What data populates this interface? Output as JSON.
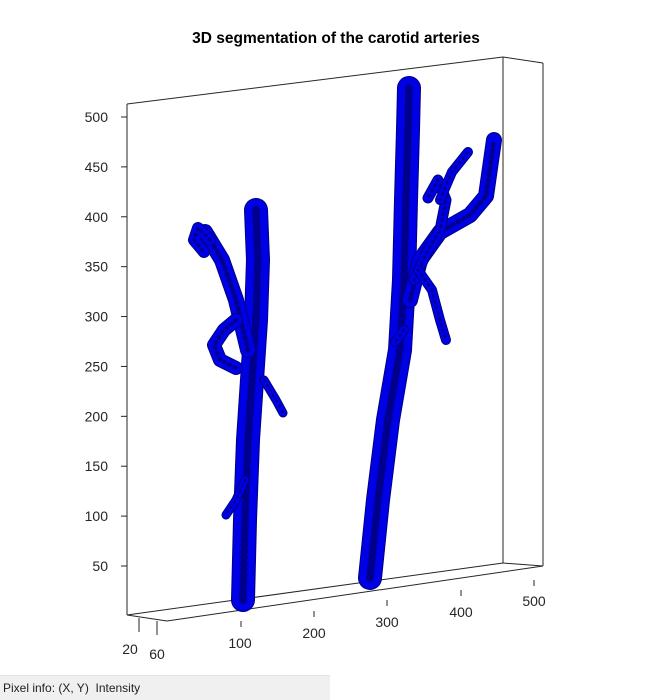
{
  "chart_data": {
    "type": "volume-render",
    "title": "3D segmentation of the carotid arteries",
    "z_ticks": [
      50,
      100,
      150,
      200,
      250,
      300,
      350,
      400,
      450,
      500
    ],
    "x_ticks": [
      100,
      200,
      300,
      400,
      500
    ],
    "y_ticks": [
      20,
      60
    ],
    "zlim": [
      0,
      530
    ],
    "vessel_color": "#0000e6",
    "outline_color": "#000080",
    "grid": false
  },
  "status": {
    "text": "Pixel info: (X, Y)  Intensity"
  }
}
